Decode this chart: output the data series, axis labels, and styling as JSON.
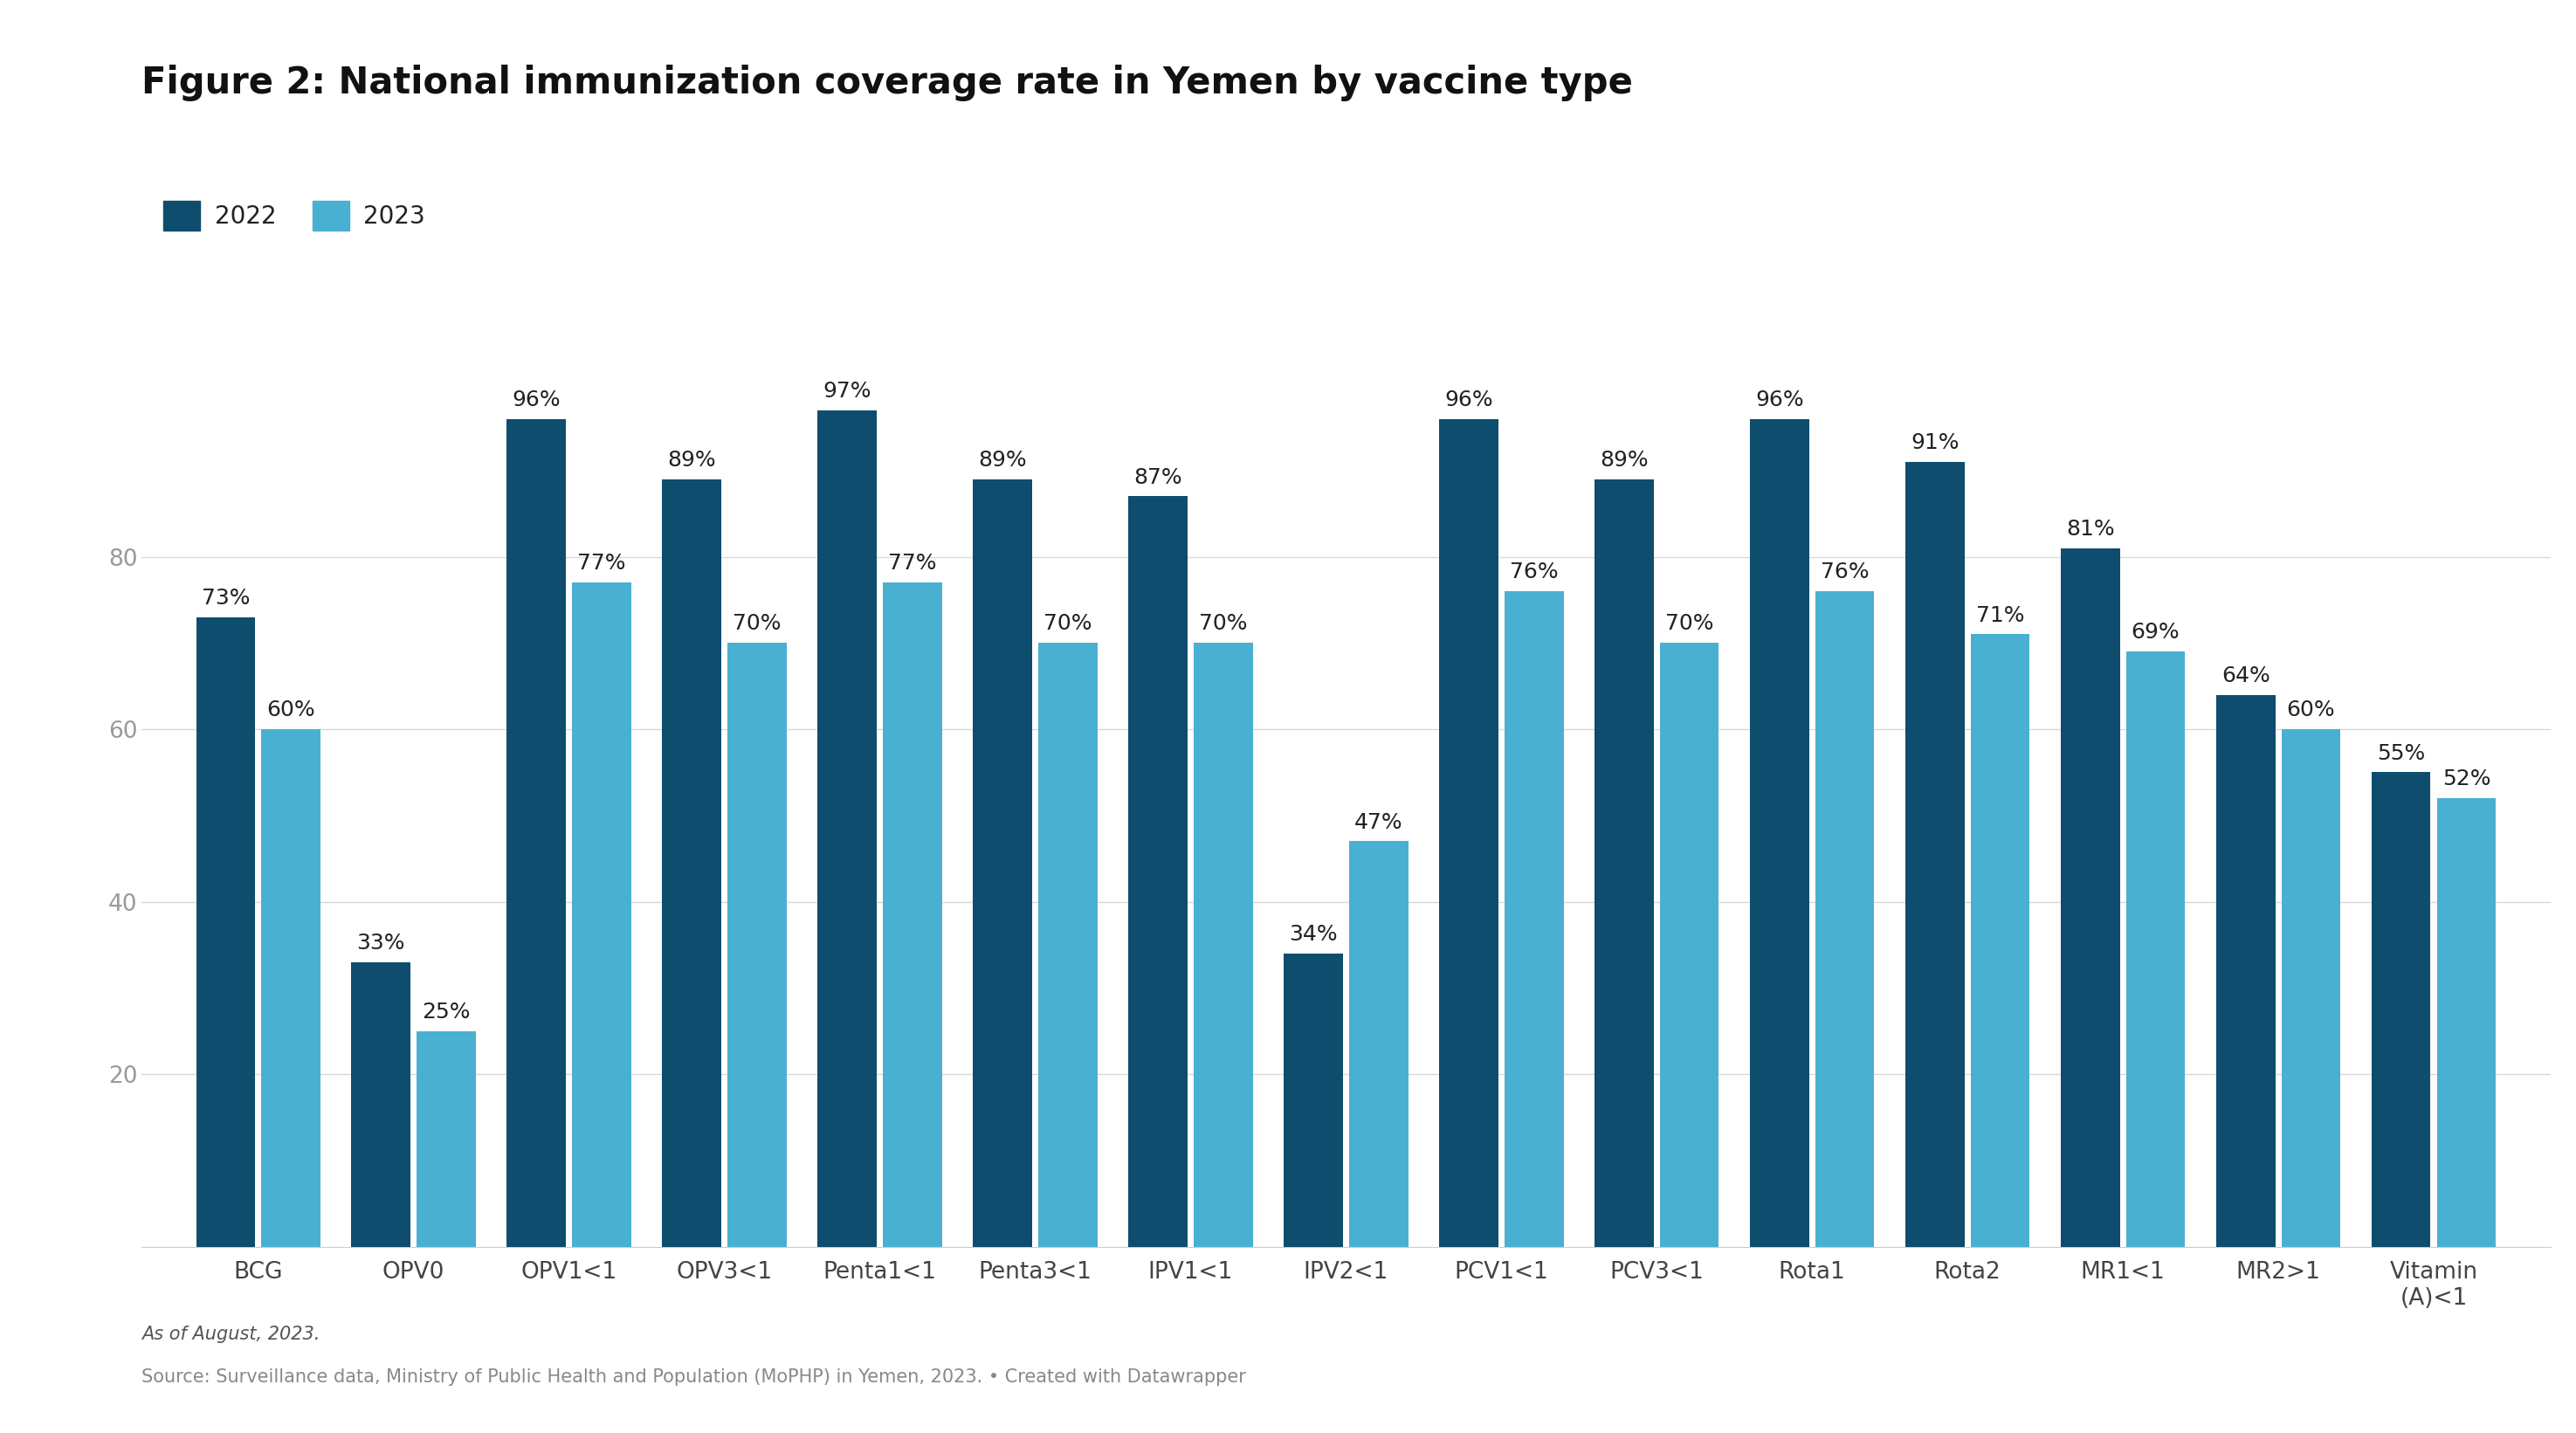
{
  "title": "Figure 2: National immunization coverage rate in Yemen by vaccine type",
  "categories": [
    "BCG",
    "OPV0",
    "OPV1<1",
    "OPV3<1",
    "Penta1<1",
    "Penta3<1",
    "IPV1<1",
    "IPV2<1",
    "PCV1<1",
    "PCV3<1",
    "Rota1",
    "Rota2",
    "MR1<1",
    "MR2>1",
    "Vitamin\n(A)<1"
  ],
  "values_2022": [
    73,
    33,
    96,
    89,
    97,
    89,
    87,
    34,
    96,
    89,
    96,
    91,
    81,
    64,
    55
  ],
  "values_2023": [
    60,
    25,
    77,
    70,
    77,
    70,
    70,
    47,
    76,
    70,
    76,
    71,
    69,
    60,
    52
  ],
  "color_2022": "#0e4d6e",
  "color_2023": "#4ab0d1",
  "yticks": [
    20,
    40,
    60,
    80
  ],
  "ylim": [
    0,
    108
  ],
  "footnote_italic": "As of August, 2023.",
  "footnote_source": "Source: Surveillance data, Ministry of Public Health and Population (MoPHP) in Yemen, 2023. • Created with Datawrapper",
  "background_color": "#ffffff",
  "grid_color": "#d8d8d8",
  "legend_2022": "2022",
  "legend_2023": "2023",
  "bar_width": 0.38,
  "title_fontsize": 30,
  "tick_fontsize": 19,
  "annotation_fontsize": 18,
  "legend_fontsize": 20,
  "footnote_fontsize": 15,
  "bar_gap": 0.04
}
